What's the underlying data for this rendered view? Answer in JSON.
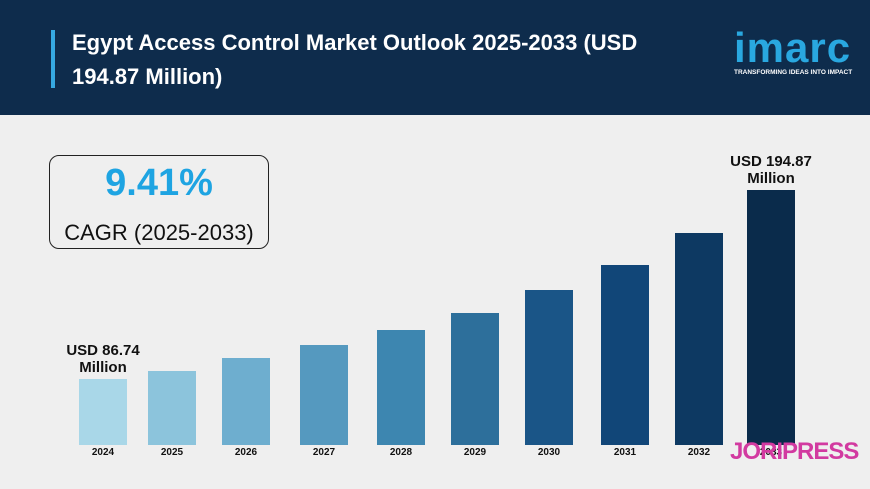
{
  "header": {
    "title": "Egypt Access Control Market Outlook 2025-2033 (USD 194.87 Million)",
    "logo": "imarc",
    "tagline": "TRANSFORMING IDEAS INTO IMPACT"
  },
  "kpi": {
    "value": "9.41%",
    "label": "CAGR (2025-2033)"
  },
  "chart_data": {
    "type": "bar",
    "categories": [
      "2024",
      "2025",
      "2026",
      "2027",
      "2028",
      "2029",
      "2030",
      "2031",
      "2032",
      "2033"
    ],
    "values": [
      86.74,
      91.3,
      98.8,
      106.2,
      114.8,
      124.5,
      137.7,
      152.0,
      170.3,
      194.87
    ],
    "value_labels": [
      "USD 86.74 Million",
      null,
      null,
      null,
      null,
      null,
      null,
      null,
      null,
      "USD 194.87 Million"
    ],
    "colors": [
      "#a9d7e8",
      "#8cc4dc",
      "#6eaecf",
      "#5599bf",
      "#3d86b0",
      "#2d6f9b",
      "#1a5587",
      "#114678",
      "#0d3962",
      "#0a2b4b"
    ],
    "ylim": [
      49,
      200
    ]
  },
  "watermark": "JORIPRESS"
}
